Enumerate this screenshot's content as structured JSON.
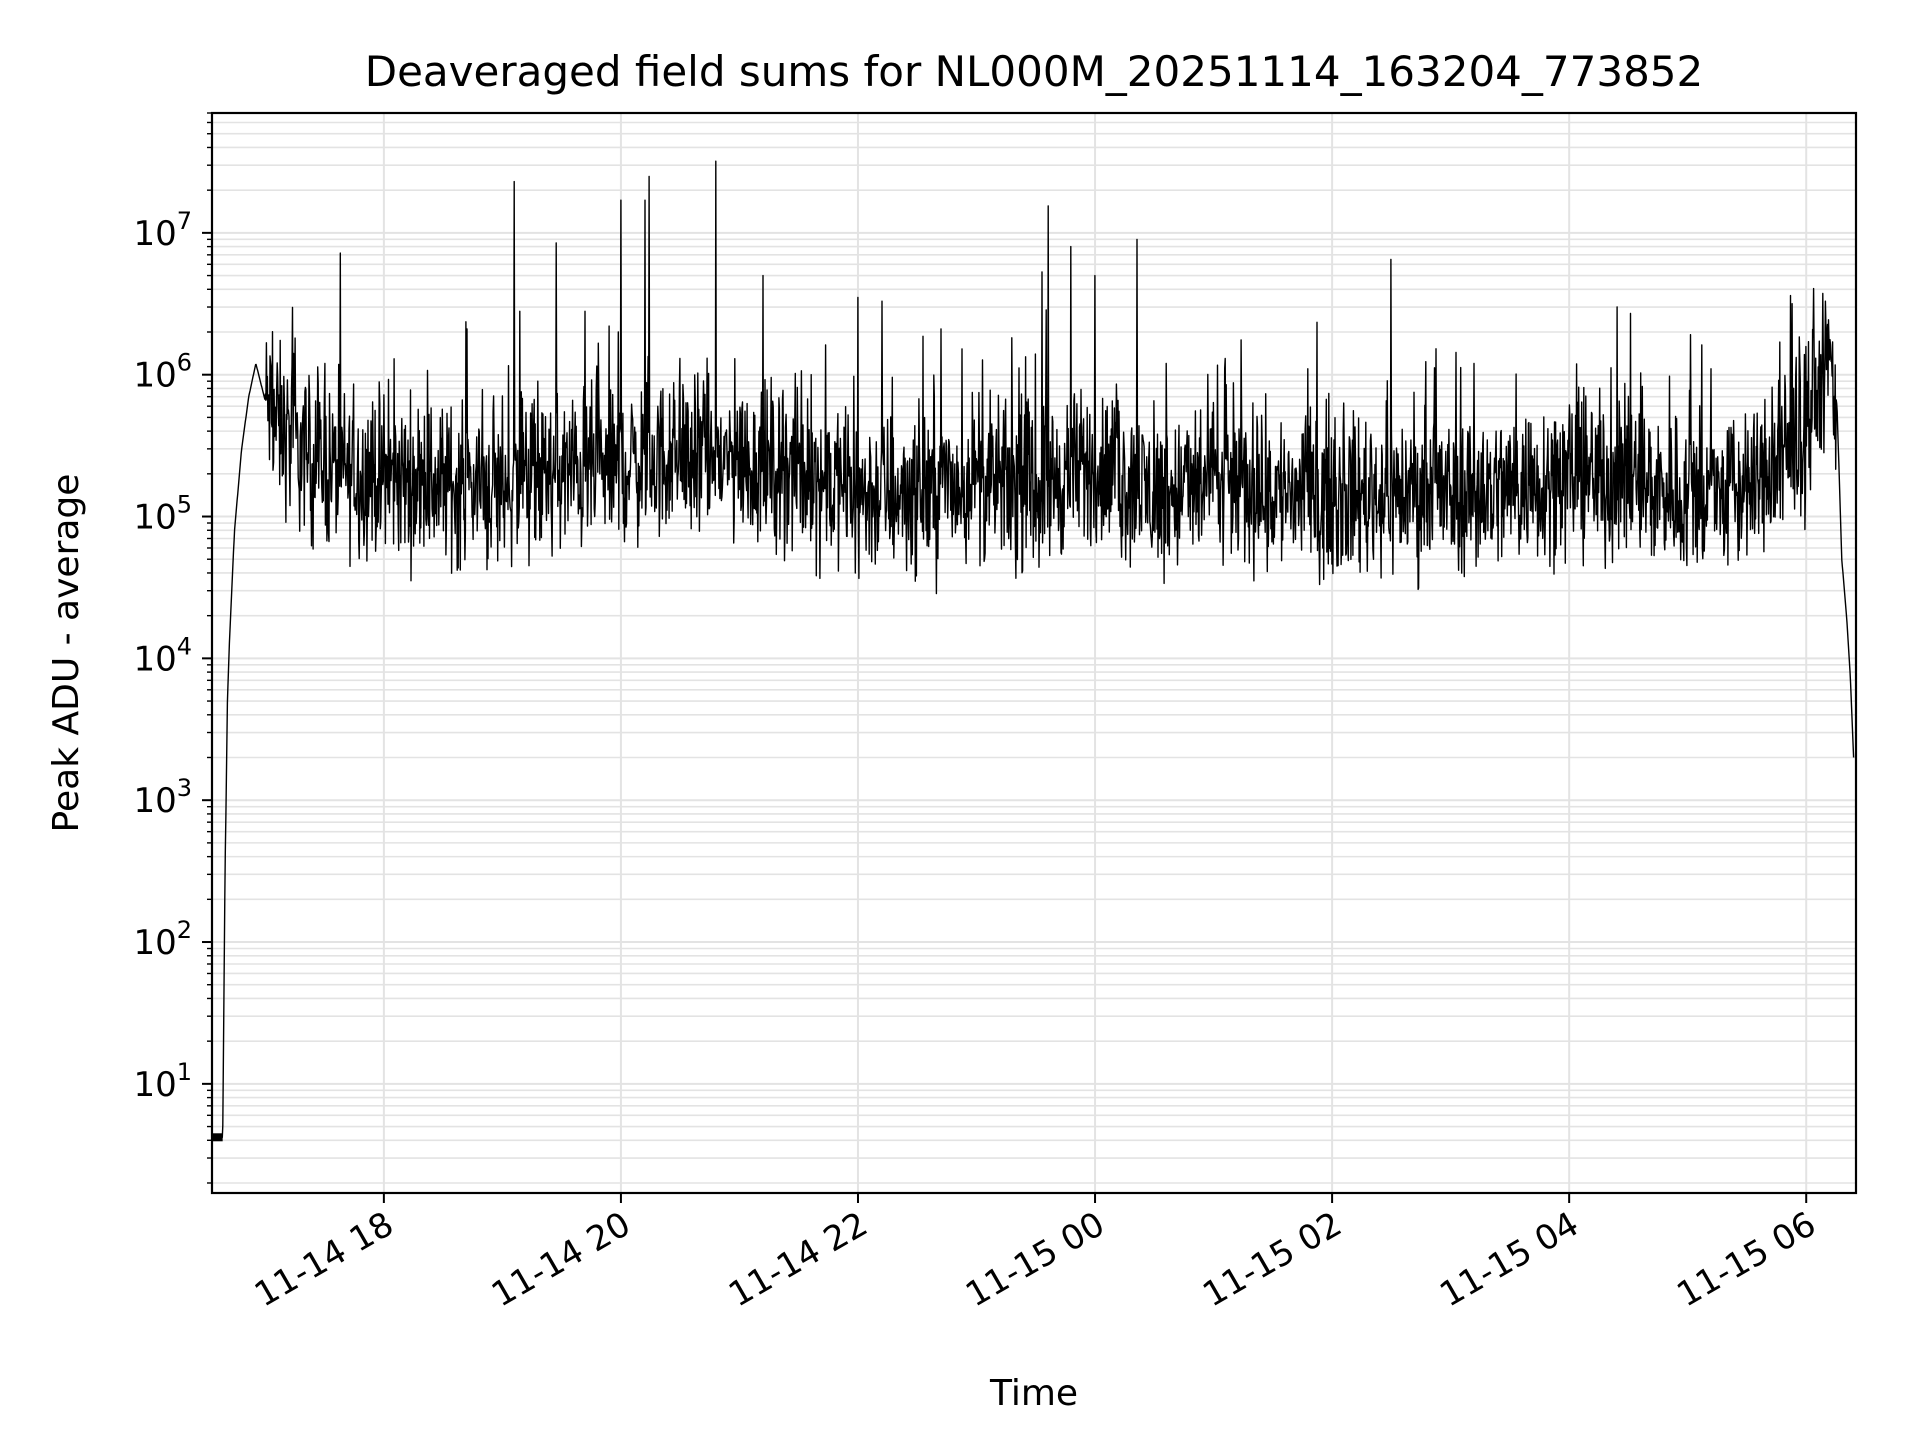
{
  "chart_data": {
    "type": "line",
    "title": "Deaveraged field sums for NL000M_20251114_163204_773852",
    "xlabel": "Time",
    "ylabel": "Peak ADU - average",
    "yscale": "log",
    "grid": true,
    "series_color": "#000000",
    "grid_color": "#e3e3e3",
    "x_unit": "hours since 2025-11-14 00:00",
    "xlim": [
      16.55,
      30.42
    ],
    "ylim": [
      1.7,
      70000000
    ],
    "x_ticks": [
      {
        "value": 18,
        "label": "11-14 18"
      },
      {
        "value": 20,
        "label": "11-14 20"
      },
      {
        "value": 22,
        "label": "11-14 22"
      },
      {
        "value": 24,
        "label": "11-15 00"
      },
      {
        "value": 26,
        "label": "11-15 02"
      },
      {
        "value": 28,
        "label": "11-15 04"
      },
      {
        "value": 30,
        "label": "11-15 06"
      }
    ],
    "y_ticks": [
      {
        "value": 10,
        "base": "10",
        "exp": "1"
      },
      {
        "value": 100,
        "base": "10",
        "exp": "2"
      },
      {
        "value": 1000,
        "base": "10",
        "exp": "3"
      },
      {
        "value": 10000,
        "base": "10",
        "exp": "4"
      },
      {
        "value": 100000,
        "base": "10",
        "exp": "5"
      },
      {
        "value": 1000000,
        "base": "10",
        "exp": "6"
      },
      {
        "value": 10000000,
        "base": "10",
        "exp": "7"
      }
    ],
    "series": [
      {
        "name": "Peak ADU - average",
        "baseline": [
          [
            16.55,
            4.2
          ],
          [
            16.62,
            4.2
          ],
          [
            16.64,
            4.2
          ],
          [
            16.66,
            300
          ],
          [
            16.68,
            5000
          ],
          [
            16.7,
            15000
          ],
          [
            16.74,
            80000
          ],
          [
            16.8,
            300000
          ],
          [
            16.86,
            700000
          ],
          [
            16.92,
            1200000
          ],
          [
            17.0,
            650000
          ],
          [
            17.1,
            450000
          ],
          [
            17.3,
            280000
          ],
          [
            17.6,
            210000
          ],
          [
            18.0,
            190000
          ],
          [
            18.5,
            170000
          ],
          [
            19.0,
            160000
          ],
          [
            19.5,
            200000
          ],
          [
            20.0,
            230000
          ],
          [
            20.5,
            260000
          ],
          [
            21.0,
            240000
          ],
          [
            21.5,
            210000
          ],
          [
            22.0,
            140000
          ],
          [
            22.5,
            150000
          ],
          [
            23.0,
            170000
          ],
          [
            23.5,
            160000
          ],
          [
            24.0,
            220000
          ],
          [
            24.5,
            140000
          ],
          [
            25.0,
            170000
          ],
          [
            25.5,
            150000
          ],
          [
            26.0,
            140000
          ],
          [
            26.5,
            150000
          ],
          [
            27.0,
            140000
          ],
          [
            27.5,
            160000
          ],
          [
            28.0,
            200000
          ],
          [
            28.5,
            180000
          ],
          [
            29.0,
            140000
          ],
          [
            29.5,
            150000
          ],
          [
            29.9,
            280000
          ],
          [
            30.1,
            700000
          ],
          [
            30.2,
            1400000
          ],
          [
            30.26,
            600000
          ],
          [
            30.3,
            50000
          ],
          [
            30.34,
            20000
          ],
          [
            30.37,
            8000
          ],
          [
            30.4,
            2000
          ]
        ],
        "spikes": [
          [
            19.1,
            23000000
          ],
          [
            19.15,
            2800000
          ],
          [
            19.45,
            8500000
          ],
          [
            19.7,
            2800000
          ],
          [
            19.9,
            2200000
          ],
          [
            20.0,
            17000000
          ],
          [
            20.2,
            17000000
          ],
          [
            20.24,
            25000000
          ],
          [
            20.8,
            32000000
          ],
          [
            21.2,
            5000000
          ],
          [
            22.0,
            3500000
          ],
          [
            22.2,
            3300000
          ],
          [
            22.7,
            2100000
          ],
          [
            23.55,
            5300000
          ],
          [
            23.6,
            15500000
          ],
          [
            23.8,
            8000000
          ],
          [
            24.0,
            5000000
          ],
          [
            24.35,
            9000000
          ],
          [
            26.5,
            6500000
          ],
          [
            28.4,
            3000000
          ],
          [
            17.5,
            1200000
          ],
          [
            18.7,
            2100000
          ],
          [
            19.3,
            900000
          ],
          [
            20.5,
            1300000
          ],
          [
            21.6,
            1000000
          ],
          [
            24.6,
            1200000
          ],
          [
            25.1,
            1300000
          ],
          [
            25.8,
            1100000
          ],
          [
            27.2,
            1200000
          ],
          [
            29.2,
            1100000
          ]
        ]
      }
    ]
  }
}
